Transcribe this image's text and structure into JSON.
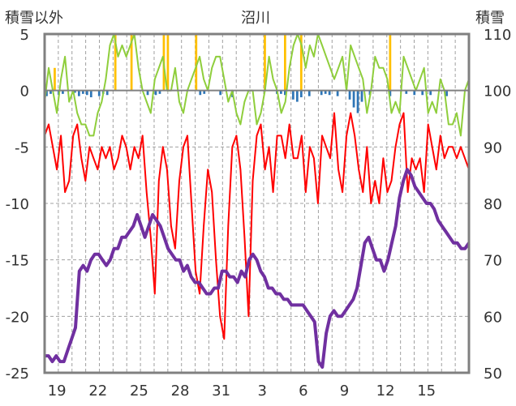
{
  "chart_data": {
    "type": "line",
    "title": "沼川",
    "left_axis_label": "積雪以外",
    "right_axis_label": "積雪",
    "left_ylim": [
      -25,
      5
    ],
    "right_ylim": [
      50,
      110
    ],
    "left_ticks": [
      "5",
      "0",
      "-5",
      "-10",
      "-15",
      "-20",
      "-25"
    ],
    "right_ticks": [
      "110",
      "100",
      "90",
      "80",
      "70",
      "60",
      "50"
    ],
    "x_tick_labels": [
      "19",
      "22",
      "25",
      "28",
      "31",
      "3",
      "6",
      "9",
      "12",
      "15"
    ],
    "colors": {
      "temperature_red": "#ff0000",
      "humidity_green": "#8fce3c",
      "snow_purple": "#7030a0",
      "precip_orange": "#ffc000",
      "precip_blue": "#2e75b6",
      "axis": "#808080",
      "grid": "#a0a0a0"
    },
    "series": [
      {
        "name": "red",
        "axis": "left",
        "values": [
          -4,
          -3,
          -5,
          -7,
          -4,
          -9,
          -8,
          -4,
          -3,
          -6,
          -8,
          -5,
          -6,
          -7,
          -5,
          -6,
          -5,
          -7,
          -6,
          -4,
          -5,
          -7,
          -5,
          -6,
          -4,
          -9,
          -13,
          -18,
          -8,
          -5,
          -7,
          -12,
          -14,
          -8,
          -5,
          -4,
          -10,
          -16,
          -18,
          -12,
          -7,
          -9,
          -15,
          -20,
          -22,
          -12,
          -5,
          -4,
          -7,
          -13,
          -20,
          -8,
          -4,
          -3,
          -7,
          -5,
          -9,
          -4,
          -4,
          -6,
          -3,
          -6,
          -6,
          -4,
          -9,
          -5,
          -6,
          -10,
          -4,
          -5,
          -6,
          -2,
          -7,
          -9,
          -4,
          -2,
          -4,
          -7,
          -9,
          -5,
          -10,
          -8,
          -10,
          -6,
          -9,
          -8,
          -5,
          -3,
          -2,
          -9,
          -6,
          -7,
          -6,
          -9,
          -3,
          -5,
          -7,
          -4,
          -6,
          -5,
          -5,
          -6,
          -5,
          -6,
          -7
        ]
      },
      {
        "name": "green",
        "axis": "left",
        "values": [
          -1,
          2,
          0,
          -2,
          1,
          3,
          -1,
          0,
          -2,
          -3,
          -3,
          -4,
          -4,
          -2,
          -1,
          1,
          4,
          5,
          3,
          4,
          3,
          4,
          5,
          2,
          0,
          -1,
          -2,
          1,
          2,
          3,
          0,
          0,
          2,
          -1,
          -2,
          0,
          1,
          2,
          3,
          1,
          0,
          2,
          3,
          3,
          1,
          -1,
          0,
          -2,
          -3,
          -1,
          0,
          0,
          -3,
          -2,
          0,
          3,
          1,
          0,
          -2,
          -1,
          2,
          4,
          5,
          4,
          2,
          4,
          3,
          5,
          4,
          3,
          2,
          1,
          2,
          3,
          0,
          4,
          3,
          2,
          1,
          -2,
          0,
          3,
          2,
          2,
          1,
          -2,
          -1,
          -2,
          3,
          2,
          1,
          0,
          1,
          2,
          -2,
          -1,
          -2,
          1,
          0,
          -3,
          -3,
          -2,
          -4,
          0,
          1
        ]
      },
      {
        "name": "snow",
        "axis": "right",
        "values": [
          53,
          53,
          52,
          53,
          52,
          52,
          54,
          56,
          58,
          68,
          69,
          68,
          70,
          71,
          71,
          70,
          69,
          70,
          72,
          72,
          74,
          74,
          75,
          76,
          78,
          76,
          74,
          76,
          78,
          77,
          76,
          74,
          72,
          71,
          70,
          70,
          68,
          69,
          67,
          66,
          66,
          65,
          64,
          64,
          65,
          65,
          68,
          68,
          67,
          67,
          66,
          68,
          67,
          70,
          71,
          70,
          68,
          67,
          65,
          65,
          64,
          64,
          63,
          63,
          62,
          62,
          62,
          62,
          61,
          60,
          59,
          52,
          51,
          57,
          60,
          61,
          60,
          60,
          61,
          62,
          63,
          65,
          69,
          73,
          74,
          72,
          70,
          70,
          68,
          70,
          73,
          76,
          81,
          84,
          86,
          85,
          83,
          82,
          81,
          80,
          80,
          79,
          77,
          76,
          75,
          74,
          73,
          73,
          72,
          72,
          73
        ]
      },
      {
        "name": "precip_orange",
        "axis": "left",
        "values": [
          0,
          0,
          2,
          0,
          0,
          0,
          0,
          0,
          0,
          0,
          0,
          0,
          0,
          0,
          0,
          0,
          0,
          5,
          0,
          0,
          0,
          5,
          0,
          0,
          0,
          0,
          0,
          0,
          0,
          5,
          5,
          0,
          0,
          0,
          0,
          0,
          0,
          5,
          0,
          0,
          0,
          0,
          0,
          0,
          0,
          0,
          0,
          0,
          0,
          0,
          0,
          0,
          0,
          0,
          5,
          0,
          0,
          0,
          0,
          5,
          0,
          0,
          0,
          5,
          0,
          0,
          0,
          0,
          0,
          0,
          0,
          0,
          0,
          0,
          0,
          0,
          0,
          0,
          0,
          0,
          0,
          0,
          0,
          0,
          0,
          5,
          0,
          0,
          0,
          0,
          0,
          0,
          0,
          0,
          0,
          0,
          0,
          0,
          0,
          0,
          0,
          0,
          0,
          0,
          0
        ]
      },
      {
        "name": "precip_blue",
        "axis": "left",
        "values": [
          -0.5,
          -0.3,
          0,
          -0.4,
          -0.3,
          0,
          0,
          -0.2,
          -0.5,
          -0.3,
          -0.4,
          -0.6,
          0,
          -0.5,
          -0.3,
          -0.4,
          0,
          0,
          0,
          0,
          0,
          0,
          0,
          0,
          0,
          -0.4,
          0,
          -0.4,
          -0.3,
          0,
          0,
          0,
          0,
          0,
          0,
          0,
          0,
          0,
          -0.4,
          -0.3,
          0,
          0,
          0,
          -0.4,
          0,
          0,
          -0.6,
          0,
          0,
          0,
          0,
          0,
          0,
          0,
          0,
          0,
          0,
          -0.3,
          -0.3,
          -0.4,
          0,
          -0.8,
          -1,
          -0.6,
          0,
          -0.5,
          0,
          0,
          -0.4,
          -0.3,
          -0.4,
          0,
          -0.5,
          0,
          0,
          -0.8,
          -1.5,
          -2,
          -1,
          0,
          -0.4,
          0,
          0,
          0,
          0,
          -0.5,
          0,
          0,
          0,
          -0.3,
          0,
          -0.4,
          0,
          -0.4,
          0,
          -0.4,
          0,
          0,
          0,
          -0.5,
          0,
          0,
          0,
          0,
          0
        ]
      }
    ]
  }
}
